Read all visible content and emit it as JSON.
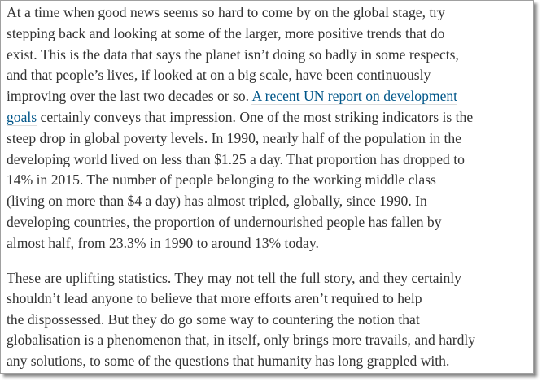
{
  "article": {
    "paragraph1": [
      [
        {
          "t": "At a time when good news seems so hard to come by on the global stage, try"
        }
      ],
      [
        {
          "t": "stepping back and looking at some of the larger, more positive trends that do"
        }
      ],
      [
        {
          "t": "exist. This is the data that says the planet isn’t doing so badly in some respects,"
        }
      ],
      [
        {
          "t": "and that people’s lives, if looked at on a big scale, have been continuously"
        }
      ],
      [
        {
          "t": "improving over the last two decades or so. "
        },
        {
          "t": "A recent UN report on development",
          "link": true
        }
      ],
      [
        {
          "t": "goals",
          "link": true
        },
        {
          "t": " certainly conveys that impression. One of the most striking indicators is the"
        }
      ],
      [
        {
          "t": "steep drop in global poverty levels. In 1990, nearly half of the population in the"
        }
      ],
      [
        {
          "t": "developing world lived on less than $1.25 a day. That proportion has dropped to"
        }
      ],
      [
        {
          "t": "14% in 2015. The number of people belonging to the working middle class"
        }
      ],
      [
        {
          "t": "(living on more than $4 a day) has almost tripled, globally, since 1990. In"
        }
      ],
      [
        {
          "t": "developing countries, the proportion of undernourished people has fallen by"
        }
      ],
      [
        {
          "t": "almost half, from 23.3% in 1990 to around 13% today."
        }
      ]
    ],
    "paragraph2": [
      [
        {
          "t": "These are uplifting statistics. They may not tell the full story, and they certainly"
        }
      ],
      [
        {
          "t": "shouldn’t lead anyone to believe that more efforts aren’t required to help"
        }
      ],
      [
        {
          "t": "the dispossessed. But they do go some way to countering the notion that"
        }
      ],
      [
        {
          "t": "globalisation is a phenomenon that, in itself, only brings more travails, and hardly"
        }
      ],
      [
        {
          "t": "any solutions, to some of the questions that humanity has long grappled with."
        }
      ]
    ],
    "colors": {
      "text": "#333333",
      "link": "#005689"
    }
  }
}
